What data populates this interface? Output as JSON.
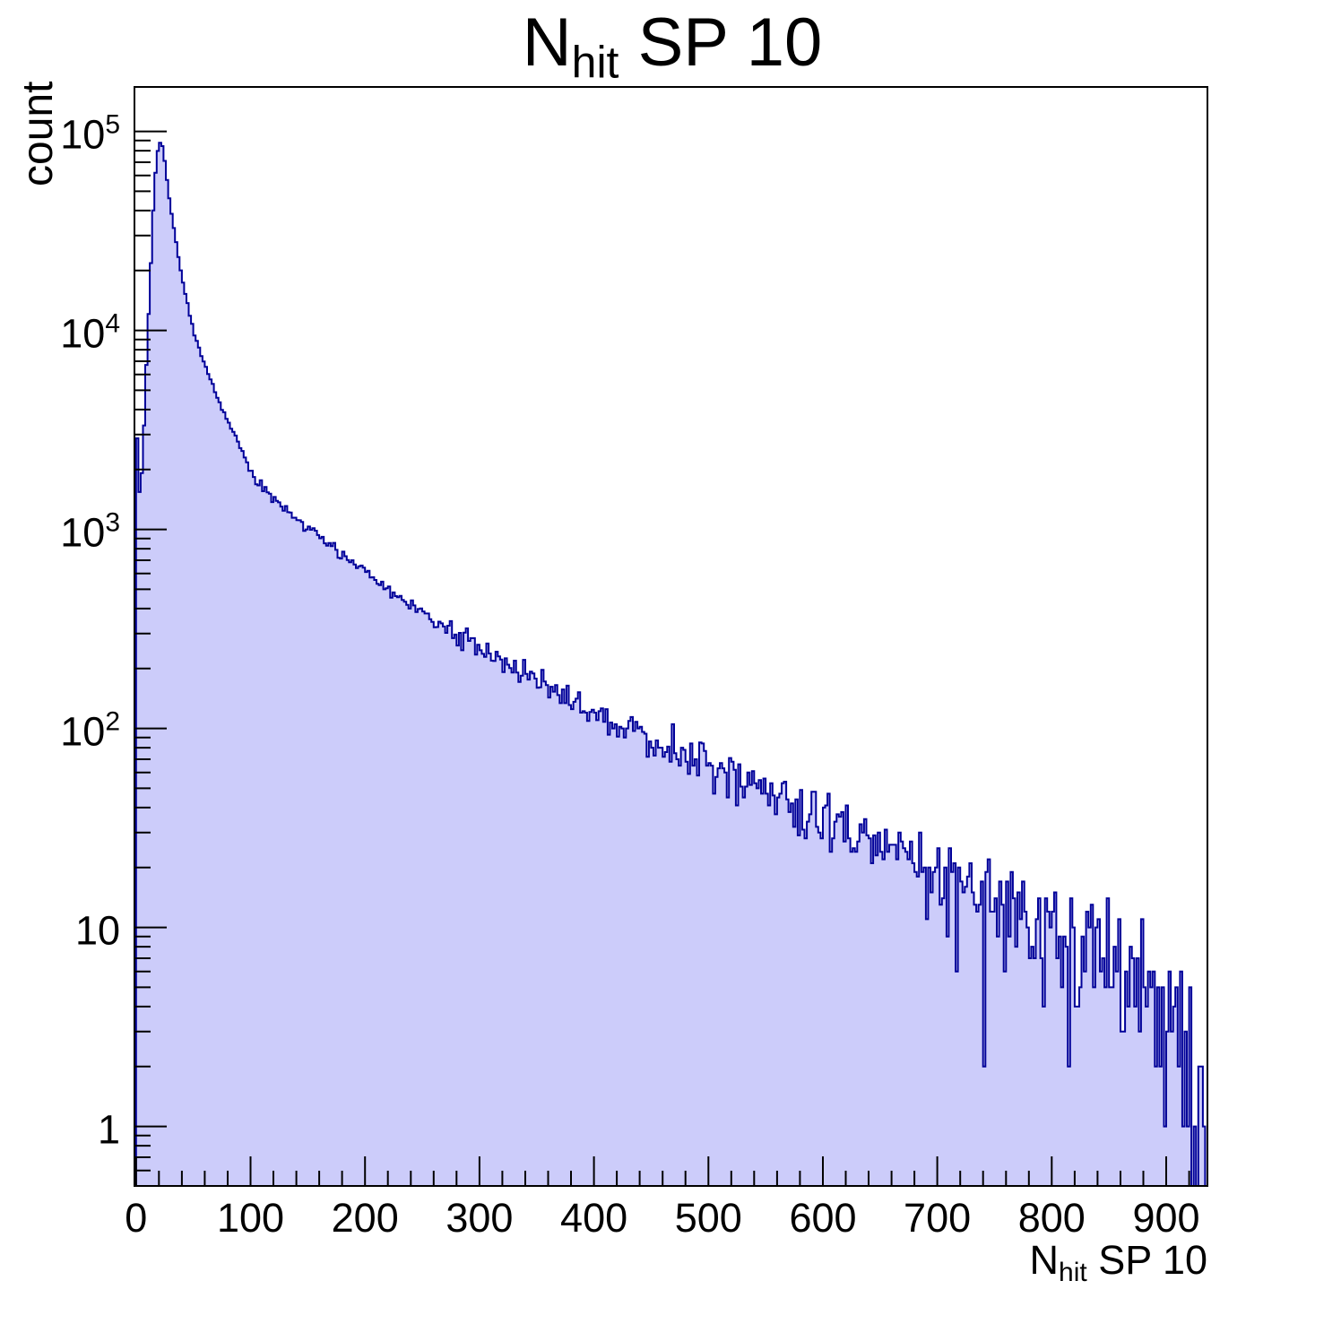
{
  "figure": {
    "background": "#ffffff"
  },
  "chart_data": {
    "type": "histogram",
    "title": {
      "pre": "N",
      "sub": "hit",
      "post": " SP 10"
    },
    "xlabel": {
      "pre": "N",
      "sub": "hit",
      "post": " SP 10"
    },
    "ylabel": "count",
    "x_range": [
      0,
      936
    ],
    "y_range": [
      0.5,
      166000
    ],
    "y_scale": "log",
    "grid": false,
    "legend": false,
    "bin_width": 2,
    "x_major_tick_step": 100,
    "x_minor_tick_step": 20,
    "x_tick_labels": [
      "0",
      "100",
      "200",
      "300",
      "400",
      "500",
      "600",
      "700",
      "800",
      "900"
    ],
    "y_tick_labels": [
      {
        "value": 1,
        "text": "1"
      },
      {
        "value": 10,
        "text": "10"
      },
      {
        "value": 100,
        "text": "10",
        "exp": "2"
      },
      {
        "value": 1000,
        "text": "10",
        "exp": "3"
      },
      {
        "value": 10000,
        "text": "10",
        "exp": "4"
      },
      {
        "value": 100000,
        "text": "10",
        "exp": "5"
      }
    ],
    "peak": {
      "x": 20,
      "count": 88000
    },
    "first_bin_count": 2900,
    "pre_peak_dip": {
      "x": 3,
      "count": 1550
    },
    "envelope_anchors": [
      [
        0,
        2900
      ],
      [
        2,
        1550
      ],
      [
        4,
        1900
      ],
      [
        6,
        3300
      ],
      [
        8,
        6600
      ],
      [
        10,
        12000
      ],
      [
        12,
        22000
      ],
      [
        14,
        40000
      ],
      [
        16,
        62000
      ],
      [
        18,
        80000
      ],
      [
        20,
        88000
      ],
      [
        22,
        84000
      ],
      [
        24,
        71000
      ],
      [
        26,
        57000
      ],
      [
        28,
        46500
      ],
      [
        30,
        38500
      ],
      [
        34,
        27500
      ],
      [
        38,
        20000
      ],
      [
        42,
        15200
      ],
      [
        46,
        12000
      ],
      [
        50,
        9700
      ],
      [
        55,
        7800
      ],
      [
        60,
        6500
      ],
      [
        65,
        5500
      ],
      [
        70,
        4600
      ],
      [
        75,
        4000
      ],
      [
        80,
        3400
      ],
      [
        85,
        2950
      ],
      [
        90,
        2550
      ],
      [
        95,
        2200
      ],
      [
        100,
        1900
      ],
      [
        110,
        1620
      ],
      [
        120,
        1420
      ],
      [
        130,
        1260
      ],
      [
        140,
        1130
      ],
      [
        150,
        1020
      ],
      [
        160,
        920
      ],
      [
        170,
        830
      ],
      [
        180,
        750
      ],
      [
        190,
        670
      ],
      [
        200,
        600
      ],
      [
        210,
        545
      ],
      [
        220,
        495
      ],
      [
        230,
        450
      ],
      [
        240,
        410
      ],
      [
        250,
        377
      ],
      [
        260,
        347
      ],
      [
        270,
        320
      ],
      [
        280,
        295
      ],
      [
        290,
        272
      ],
      [
        300,
        252
      ],
      [
        310,
        233
      ],
      [
        320,
        216
      ],
      [
        330,
        200
      ],
      [
        340,
        186
      ],
      [
        350,
        173
      ],
      [
        360,
        161
      ],
      [
        370,
        150
      ],
      [
        380,
        140
      ],
      [
        390,
        130
      ],
      [
        400,
        121
      ],
      [
        410,
        113
      ],
      [
        420,
        106
      ],
      [
        430,
        99
      ],
      [
        440,
        93
      ],
      [
        450,
        87
      ],
      [
        460,
        82
      ],
      [
        470,
        77
      ],
      [
        480,
        72
      ],
      [
        490,
        68
      ],
      [
        500,
        64
      ],
      [
        510,
        60
      ],
      [
        520,
        56
      ],
      [
        530,
        53
      ],
      [
        540,
        50
      ],
      [
        550,
        47
      ],
      [
        560,
        44
      ],
      [
        570,
        41.5
      ],
      [
        580,
        39
      ],
      [
        590,
        37
      ],
      [
        600,
        35
      ],
      [
        610,
        33
      ],
      [
        620,
        31
      ],
      [
        630,
        29
      ],
      [
        640,
        27
      ],
      [
        650,
        25.5
      ],
      [
        660,
        24
      ],
      [
        670,
        22.5
      ],
      [
        680,
        21
      ],
      [
        690,
        20
      ],
      [
        700,
        18.5
      ],
      [
        710,
        17.5
      ],
      [
        720,
        16.5
      ],
      [
        730,
        15.5
      ],
      [
        740,
        14.5
      ],
      [
        750,
        13.6
      ],
      [
        760,
        12.8
      ],
      [
        770,
        12
      ],
      [
        780,
        11.3
      ],
      [
        790,
        10.6
      ],
      [
        800,
        10
      ],
      [
        810,
        9.4
      ],
      [
        820,
        8.8
      ],
      [
        830,
        8.3
      ],
      [
        840,
        7.8
      ],
      [
        850,
        7.3
      ],
      [
        860,
        6.8
      ],
      [
        870,
        6.3
      ],
      [
        880,
        5.7
      ],
      [
        890,
        5.0
      ],
      [
        900,
        4.2
      ],
      [
        910,
        3.2
      ],
      [
        920,
        2.2
      ],
      [
        928,
        1.4
      ],
      [
        936,
        1.0
      ]
    ],
    "noise": {
      "model": "poisson-gauss",
      "seed": 20
    },
    "colors": {
      "fill": "#ccccfa",
      "line": "#000099",
      "axis": "#000000",
      "text": "#000000"
    }
  }
}
